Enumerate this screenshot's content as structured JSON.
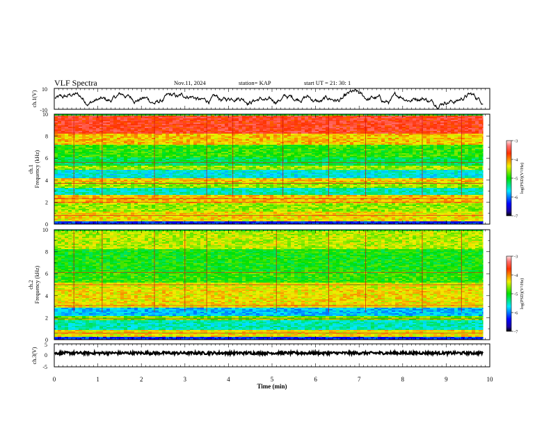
{
  "header": {
    "title": "VLF Spectra",
    "date": "Nov.11, 2024",
    "station": "station= KAP",
    "start": "start  UT =   21: 30: 1"
  },
  "chart_data": [
    {
      "type": "line",
      "name": "ch1-waveform",
      "ylabel": "ch.1(V)",
      "ylim": [
        -10,
        10
      ],
      "y_ticks": [
        "10",
        "-10"
      ],
      "xlim": [
        0,
        10
      ],
      "x_extent": 9.85,
      "description_values": {
        "mean": 0,
        "envelope": [
          -8,
          8
        ]
      }
    },
    {
      "type": "heatmap",
      "name": "ch1-spectrogram",
      "ylabel": "ch.1\nFrequency (kHz)",
      "ylim": [
        0,
        10
      ],
      "y_ticks": [
        "0",
        "2",
        "4",
        "6",
        "8",
        "10"
      ],
      "xlim": [
        0,
        10
      ],
      "x_extent": 9.85,
      "colorbar": {
        "label": "log(PSD)(V²/Hz)",
        "range": [
          -7,
          -3
        ],
        "ticks": [
          "-3",
          "-4",
          "-5",
          "-6",
          "-7"
        ]
      },
      "bands": [
        {
          "f_from": 0,
          "f_to": 0.3,
          "logpsd": -6.3
        },
        {
          "f_from": 0.3,
          "f_to": 1.2,
          "logpsd": -4.3
        },
        {
          "f_from": 1.2,
          "f_to": 2.0,
          "logpsd": -4.6
        },
        {
          "f_from": 2.0,
          "f_to": 2.7,
          "logpsd": -4.2
        },
        {
          "f_from": 2.7,
          "f_to": 3.4,
          "logpsd": -5.5
        },
        {
          "f_from": 3.4,
          "f_to": 3.8,
          "logpsd": -4.6
        },
        {
          "f_from": 3.8,
          "f_to": 4.2,
          "logpsd": -4.2
        },
        {
          "f_from": 4.2,
          "f_to": 5.0,
          "logpsd": -5.6
        },
        {
          "f_from": 5.0,
          "f_to": 5.4,
          "logpsd": -4.6
        },
        {
          "f_from": 5.4,
          "f_to": 6.1,
          "logpsd": -5.2
        },
        {
          "f_from": 6.1,
          "f_to": 7.3,
          "logpsd": -4.9
        },
        {
          "f_from": 7.3,
          "f_to": 8.3,
          "logpsd": -4.2
        },
        {
          "f_from": 8.3,
          "f_to": 10.0,
          "logpsd": -3.6
        }
      ],
      "lines_khz": [
        0.8,
        2.0,
        2.3,
        3.7,
        5.6
      ],
      "spike_times_min": [
        0.45,
        1.1,
        2.3,
        3.5,
        4.1,
        5.25,
        6.3,
        7.15,
        8.45,
        9.35
      ]
    },
    {
      "type": "heatmap",
      "name": "ch2-spectrogram",
      "ylabel": "ch.2\nFrequency (kHz)",
      "ylim": [
        0,
        10
      ],
      "y_ticks": [
        "0",
        "2",
        "4",
        "6",
        "8",
        "10"
      ],
      "xlim": [
        0,
        10
      ],
      "x_extent": 9.85,
      "colorbar": {
        "label": "log(PSD)(V²/Hz)",
        "range": [
          -7,
          -3
        ],
        "ticks": [
          "-3",
          "-4",
          "-5",
          "-6",
          "-7"
        ]
      },
      "bands": [
        {
          "f_from": 0,
          "f_to": 0.3,
          "logpsd": -6.3
        },
        {
          "f_from": 0.3,
          "f_to": 1.0,
          "logpsd": -4.3
        },
        {
          "f_from": 1.0,
          "f_to": 1.8,
          "logpsd": -5.5
        },
        {
          "f_from": 1.8,
          "f_to": 2.2,
          "logpsd": -4.7
        },
        {
          "f_from": 2.2,
          "f_to": 3.0,
          "logpsd": -5.8
        },
        {
          "f_from": 3.0,
          "f_to": 3.4,
          "logpsd": -4.3
        },
        {
          "f_from": 3.4,
          "f_to": 4.6,
          "logpsd": -4.3
        },
        {
          "f_from": 4.6,
          "f_to": 5.2,
          "logpsd": -4.4
        },
        {
          "f_from": 5.2,
          "f_to": 6.3,
          "logpsd": -4.9
        },
        {
          "f_from": 6.3,
          "f_to": 8.3,
          "logpsd": -5.0
        },
        {
          "f_from": 8.3,
          "f_to": 10.0,
          "logpsd": -4.5
        }
      ],
      "lines_khz": [
        0.6,
        1.9,
        3.1,
        5.0,
        6.1
      ],
      "spike_times_min": [
        0.45,
        1.1,
        2.3,
        3.0,
        3.5,
        5.1,
        6.3,
        7.15,
        8.45,
        9.35
      ]
    },
    {
      "type": "line",
      "name": "ch3-waveform",
      "ylabel": "ch.3(V)",
      "ylim": [
        -5,
        5
      ],
      "y_ticks": [
        "5",
        "0",
        "-5"
      ],
      "xlim": [
        0,
        10
      ],
      "x_extent": 9.85,
      "description_values": {
        "mean": 1.0,
        "envelope": [
          0.5,
          1.5
        ]
      },
      "xlabel": "Time (min)",
      "x_ticks": [
        "0",
        "1",
        "2",
        "3",
        "4",
        "5",
        "6",
        "7",
        "8",
        "9",
        "10"
      ]
    }
  ]
}
